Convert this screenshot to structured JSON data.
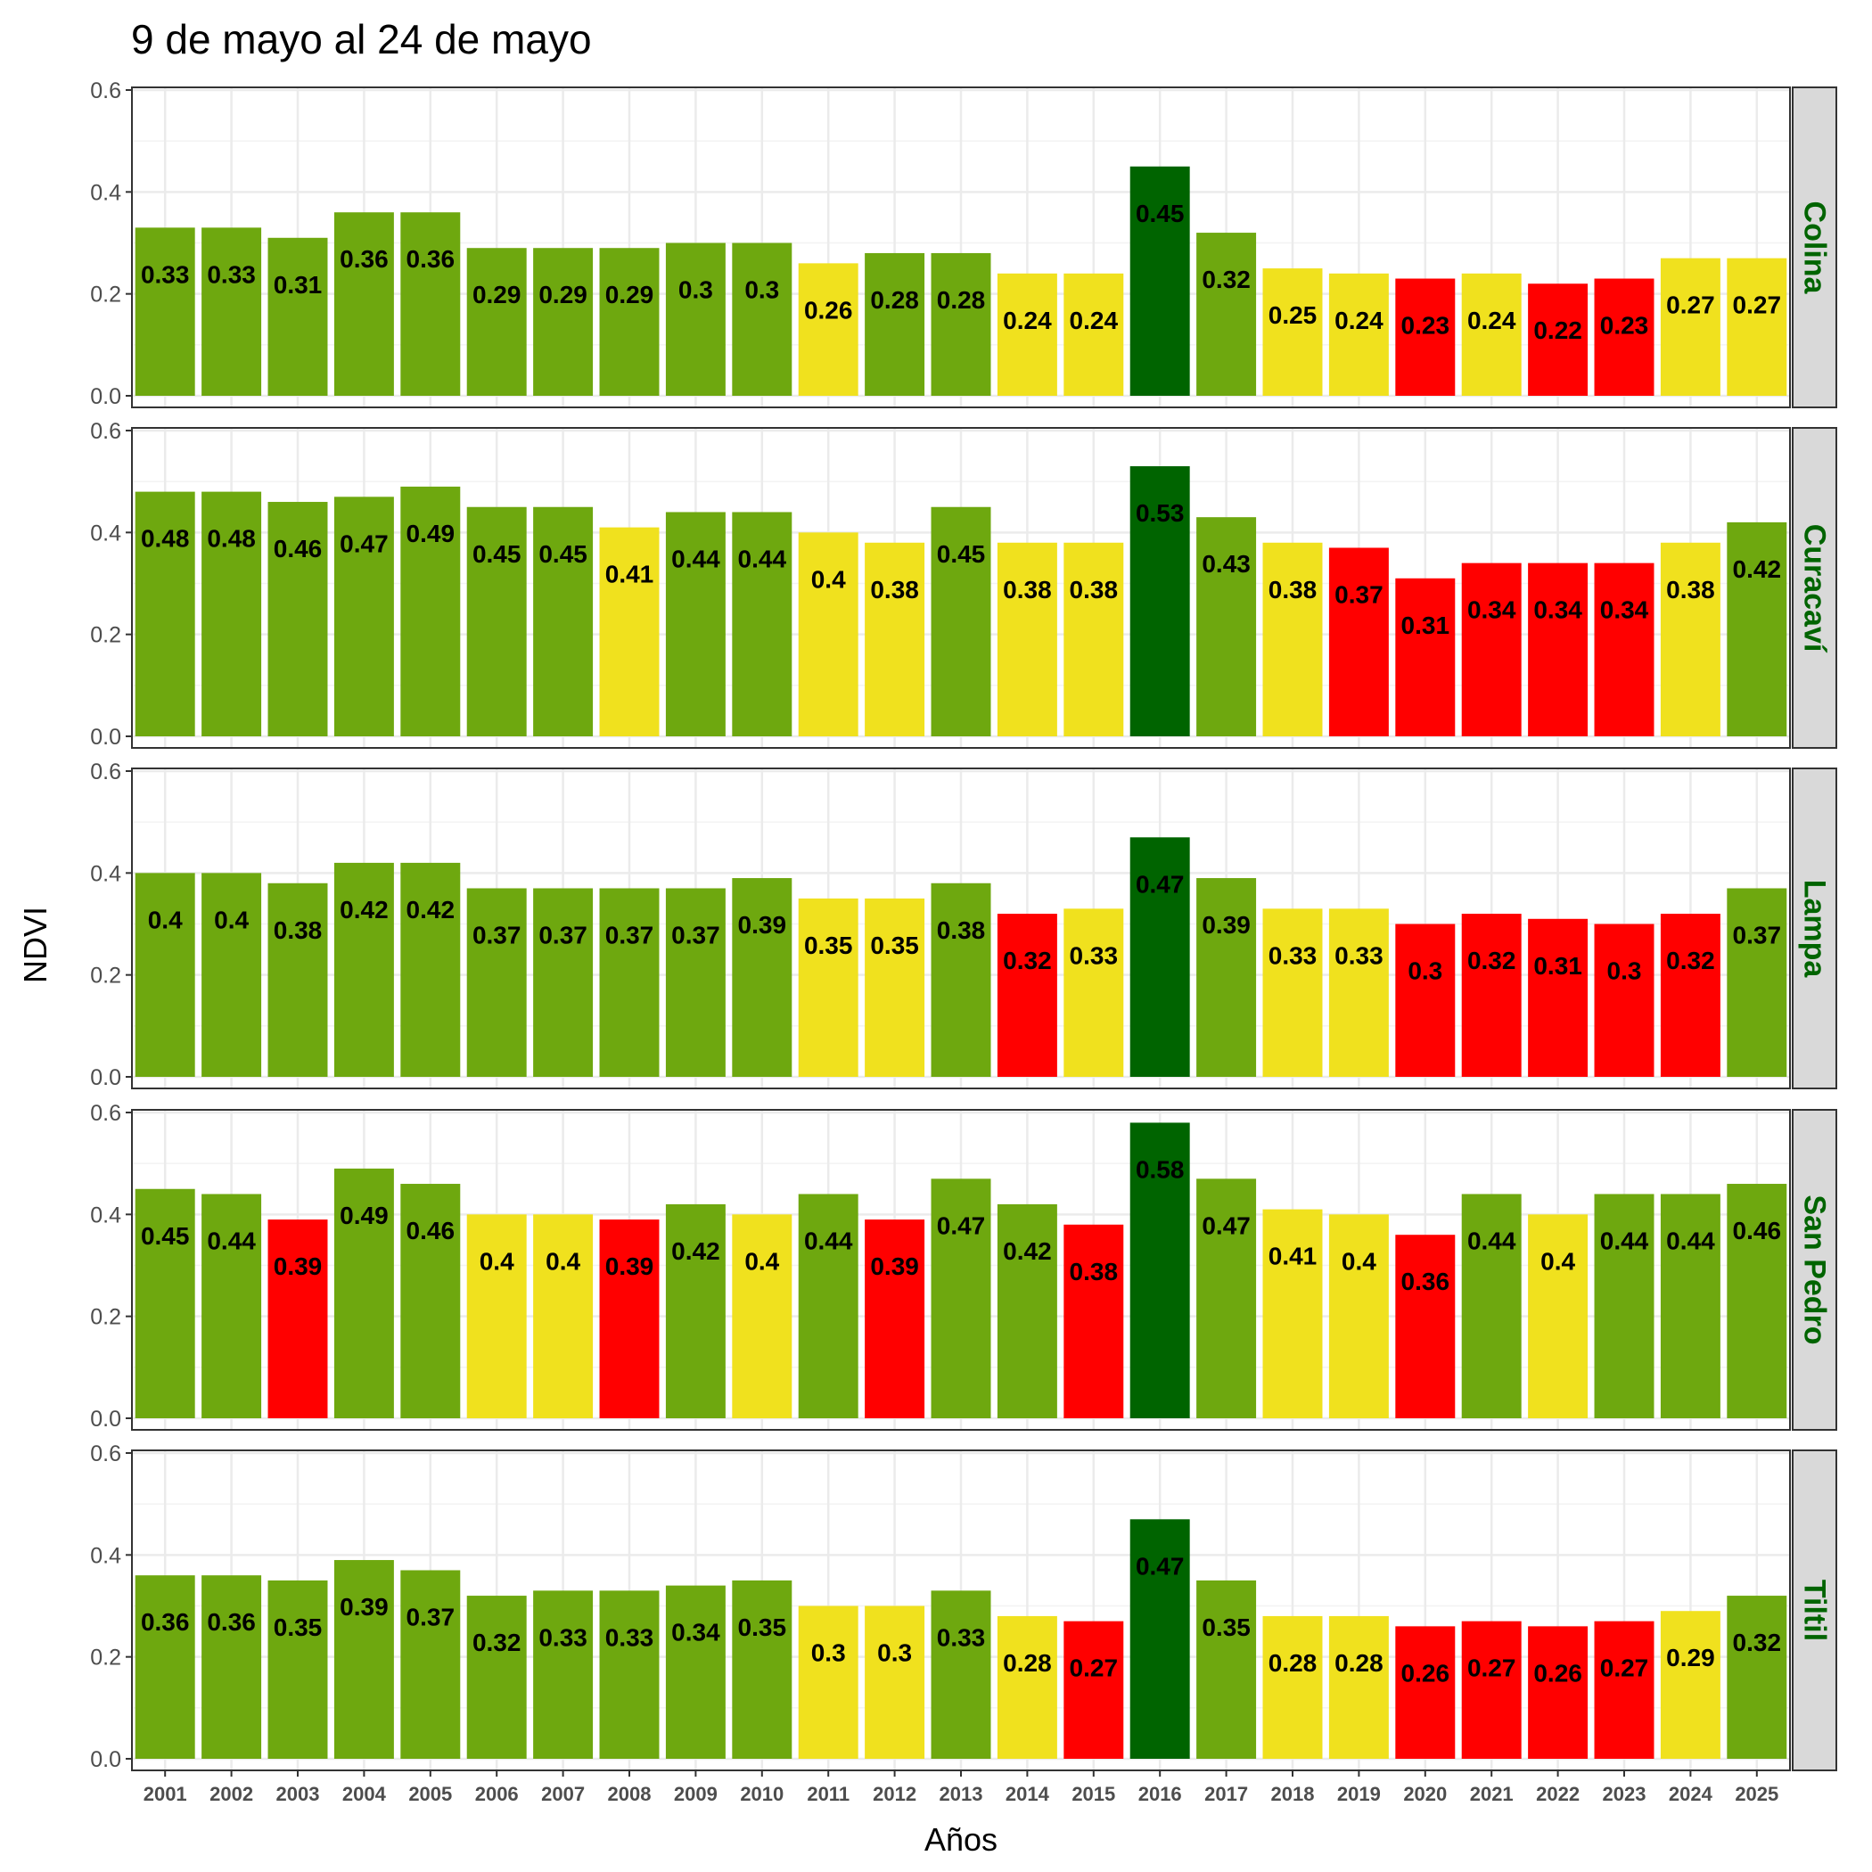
{
  "chart_data": {
    "type": "bar",
    "title": "9 de mayo al 24 de mayo",
    "xlabel": "Años",
    "ylabel": "NDVI",
    "ylim": [
      0,
      0.6
    ],
    "yticks": [
      "0.0",
      "0.2",
      "0.4",
      "0.6"
    ],
    "grid": true,
    "categories": [
      "2001",
      "2002",
      "2003",
      "2004",
      "2005",
      "2006",
      "2007",
      "2008",
      "2009",
      "2010",
      "2011",
      "2012",
      "2013",
      "2014",
      "2015",
      "2016",
      "2017",
      "2018",
      "2019",
      "2020",
      "2021",
      "2022",
      "2023",
      "2024",
      "2025"
    ],
    "colors": {
      "dark_green": "#006400",
      "green": "#6ea80f",
      "yellow": "#f0e11e",
      "red": "#ff0000"
    },
    "panels": [
      {
        "name": "Colina",
        "values": [
          0.33,
          0.33,
          0.31,
          0.36,
          0.36,
          0.29,
          0.29,
          0.29,
          0.3,
          0.3,
          0.26,
          0.28,
          0.28,
          0.24,
          0.24,
          0.45,
          0.32,
          0.25,
          0.24,
          0.23,
          0.24,
          0.22,
          0.23,
          0.27,
          0.27
        ],
        "labels": [
          "0.33",
          "0.33",
          "0.31",
          "0.36",
          "0.36",
          "0.29",
          "0.29",
          "0.29",
          "0.3",
          "0.3",
          "0.26",
          "0.28",
          "0.28",
          "0.24",
          "0.24",
          "0.45",
          "0.32",
          "0.25",
          "0.24",
          "0.23",
          "0.24",
          "0.22",
          "0.23",
          "0.27",
          "0.27"
        ],
        "categories_color": [
          "green",
          "green",
          "green",
          "green",
          "green",
          "green",
          "green",
          "green",
          "green",
          "green",
          "yellow",
          "green",
          "green",
          "yellow",
          "yellow",
          "dark_green",
          "green",
          "yellow",
          "yellow",
          "red",
          "yellow",
          "red",
          "red",
          "yellow",
          "yellow"
        ]
      },
      {
        "name": "Curacaví",
        "values": [
          0.48,
          0.48,
          0.46,
          0.47,
          0.49,
          0.45,
          0.45,
          0.41,
          0.44,
          0.44,
          0.4,
          0.38,
          0.45,
          0.38,
          0.38,
          0.53,
          0.43,
          0.38,
          0.37,
          0.31,
          0.34,
          0.34,
          0.34,
          0.38,
          0.42
        ],
        "labels": [
          "0.48",
          "0.48",
          "0.46",
          "0.47",
          "0.49",
          "0.45",
          "0.45",
          "0.41",
          "0.44",
          "0.44",
          "0.4",
          "0.38",
          "0.45",
          "0.38",
          "0.38",
          "0.53",
          "0.43",
          "0.38",
          "0.37",
          "0.31",
          "0.34",
          "0.34",
          "0.34",
          "0.38",
          "0.42"
        ],
        "categories_color": [
          "green",
          "green",
          "green",
          "green",
          "green",
          "green",
          "green",
          "yellow",
          "green",
          "green",
          "yellow",
          "yellow",
          "green",
          "yellow",
          "yellow",
          "dark_green",
          "green",
          "yellow",
          "red",
          "red",
          "red",
          "red",
          "red",
          "yellow",
          "green"
        ]
      },
      {
        "name": "Lampa",
        "values": [
          0.4,
          0.4,
          0.38,
          0.42,
          0.42,
          0.37,
          0.37,
          0.37,
          0.37,
          0.39,
          0.35,
          0.35,
          0.38,
          0.32,
          0.33,
          0.47,
          0.39,
          0.33,
          0.33,
          0.3,
          0.32,
          0.31,
          0.3,
          0.32,
          0.37
        ],
        "labels": [
          "0.4",
          "0.4",
          "0.38",
          "0.42",
          "0.42",
          "0.37",
          "0.37",
          "0.37",
          "0.37",
          "0.39",
          "0.35",
          "0.35",
          "0.38",
          "0.32",
          "0.33",
          "0.47",
          "0.39",
          "0.33",
          "0.33",
          "0.3",
          "0.32",
          "0.31",
          "0.3",
          "0.32",
          "0.37"
        ],
        "categories_color": [
          "green",
          "green",
          "green",
          "green",
          "green",
          "green",
          "green",
          "green",
          "green",
          "green",
          "yellow",
          "yellow",
          "green",
          "red",
          "yellow",
          "dark_green",
          "green",
          "yellow",
          "yellow",
          "red",
          "red",
          "red",
          "red",
          "red",
          "green"
        ]
      },
      {
        "name": "San Pedro",
        "values": [
          0.45,
          0.44,
          0.39,
          0.49,
          0.46,
          0.4,
          0.4,
          0.39,
          0.42,
          0.4,
          0.44,
          0.39,
          0.47,
          0.42,
          0.38,
          0.58,
          0.47,
          0.41,
          0.4,
          0.36,
          0.44,
          0.4,
          0.44,
          0.44,
          0.46
        ],
        "labels": [
          "0.45",
          "0.44",
          "0.39",
          "0.49",
          "0.46",
          "0.4",
          "0.4",
          "0.39",
          "0.42",
          "0.4",
          "0.44",
          "0.39",
          "0.47",
          "0.42",
          "0.38",
          "0.58",
          "0.47",
          "0.41",
          "0.4",
          "0.36",
          "0.44",
          "0.4",
          "0.44",
          "0.44",
          "0.46"
        ],
        "categories_color": [
          "green",
          "green",
          "red",
          "green",
          "green",
          "yellow",
          "yellow",
          "red",
          "green",
          "yellow",
          "green",
          "red",
          "green",
          "green",
          "red",
          "dark_green",
          "green",
          "yellow",
          "yellow",
          "red",
          "green",
          "yellow",
          "green",
          "green",
          "green"
        ]
      },
      {
        "name": "Tiltil",
        "values": [
          0.36,
          0.36,
          0.35,
          0.39,
          0.37,
          0.32,
          0.33,
          0.33,
          0.34,
          0.35,
          0.3,
          0.3,
          0.33,
          0.28,
          0.27,
          0.47,
          0.35,
          0.28,
          0.28,
          0.26,
          0.27,
          0.26,
          0.27,
          0.29,
          0.32
        ],
        "labels": [
          "0.36",
          "0.36",
          "0.35",
          "0.39",
          "0.37",
          "0.32",
          "0.33",
          "0.33",
          "0.34",
          "0.35",
          "0.3",
          "0.3",
          "0.33",
          "0.28",
          "0.27",
          "0.47",
          "0.35",
          "0.28",
          "0.28",
          "0.26",
          "0.27",
          "0.26",
          "0.27",
          "0.29",
          "0.32"
        ],
        "categories_color": [
          "green",
          "green",
          "green",
          "green",
          "green",
          "green",
          "green",
          "green",
          "green",
          "green",
          "yellow",
          "yellow",
          "green",
          "yellow",
          "red",
          "dark_green",
          "green",
          "yellow",
          "yellow",
          "red",
          "red",
          "red",
          "red",
          "yellow",
          "green"
        ]
      }
    ]
  }
}
